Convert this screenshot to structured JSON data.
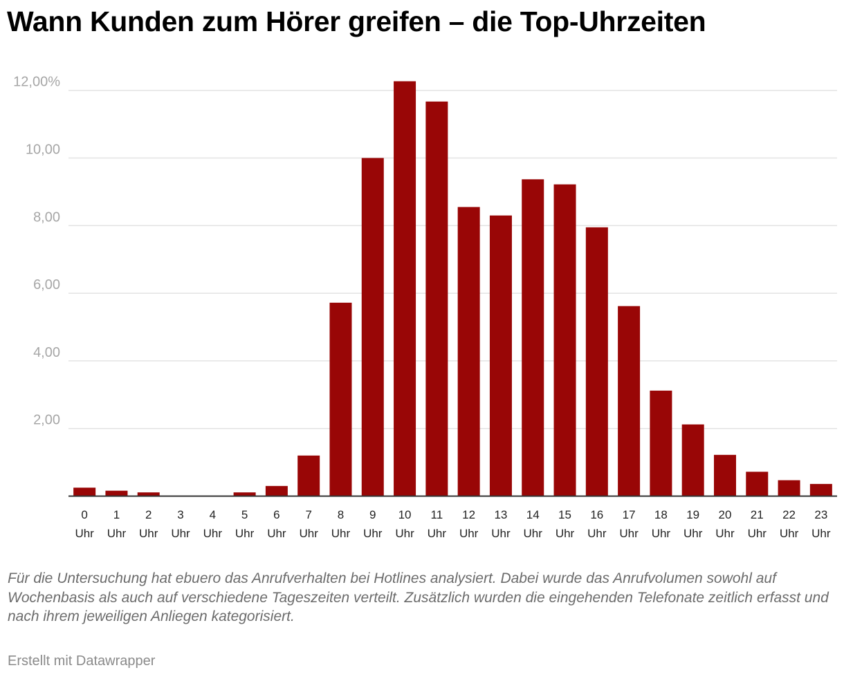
{
  "title": "Wann Kunden zum Hörer greifen – die Top-Uhrzeiten",
  "notes": "Für die Untersuchung hat ebuero das Anrufverhalten bei Hotlines analysiert. Dabei wurde das Anrufvolumen sowohl auf Wochenbasis als auch auf verschiedene Tageszeiten verteilt. Zusätzlich wurden die eingehenden Telefonate zeitlich erfasst und nach ihrem jeweiligen Anliegen kategorisiert.",
  "credit": "Erstellt mit Datawrapper",
  "colors": {
    "bar": "#990606",
    "grid": "#e3e3e3",
    "axis": "#333333",
    "tick_y": "#a6a6a6"
  },
  "chart_data": {
    "type": "bar",
    "categories": [
      "0 Uhr",
      "1 Uhr",
      "2 Uhr",
      "3 Uhr",
      "4 Uhr",
      "5 Uhr",
      "6 Uhr",
      "7 Uhr",
      "8 Uhr",
      "9 Uhr",
      "10 Uhr",
      "11 Uhr",
      "12 Uhr",
      "13 Uhr",
      "14 Uhr",
      "15 Uhr",
      "16 Uhr",
      "17 Uhr",
      "18 Uhr",
      "19 Uhr",
      "20 Uhr",
      "21 Uhr",
      "22 Uhr",
      "23 Uhr"
    ],
    "values": [
      0.25,
      0.16,
      0.11,
      0.0,
      0.0,
      0.11,
      0.3,
      1.2,
      5.72,
      10.0,
      12.27,
      11.67,
      8.55,
      8.3,
      9.37,
      9.22,
      7.95,
      5.62,
      3.12,
      2.12,
      1.22,
      0.72,
      0.47,
      0.36
    ],
    "y_ticks": [
      "2,00",
      "4,00",
      "6,00",
      "8,00",
      "10,00",
      "12,00%"
    ],
    "y_tick_values": [
      2,
      4,
      6,
      8,
      10,
      12
    ],
    "ylim": [
      0,
      12.5
    ],
    "xlabel": "",
    "ylabel": "",
    "grid": true
  }
}
